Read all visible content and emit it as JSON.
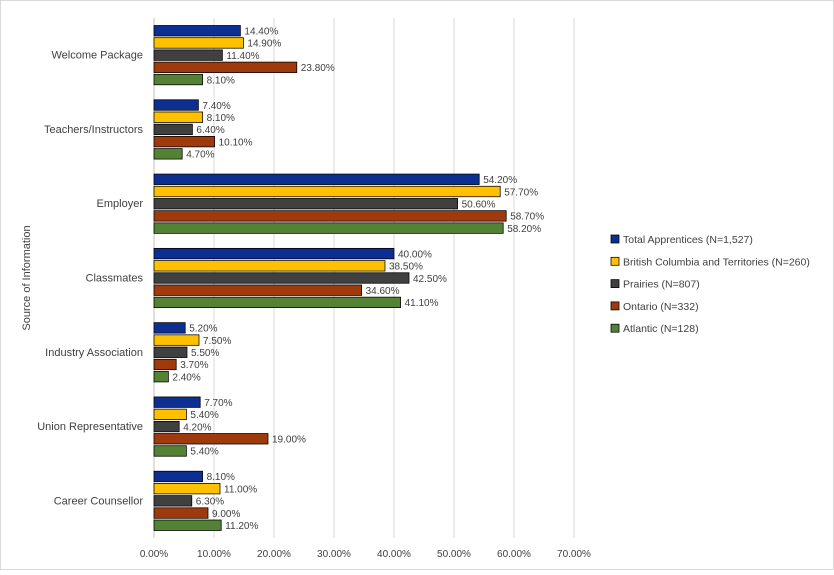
{
  "chart_data": {
    "type": "bar",
    "orientation": "horizontal",
    "title": "",
    "xlabel": "",
    "ylabel": "Source of Information",
    "xlim": [
      0,
      70
    ],
    "xticks": [
      0,
      10,
      20,
      30,
      40,
      50,
      60,
      70
    ],
    "tick_labels": [
      "0.00%",
      "10.00%",
      "20.00%",
      "30.00%",
      "40.00%",
      "50.00%",
      "60.00%",
      "70.00%"
    ],
    "grid": true,
    "legend_position": "right",
    "categories": [
      "Welcome Package",
      "Teachers/Instructors",
      "Employer",
      "Classmates",
      "Industry Association",
      "Union Representative",
      "Career Counsellor"
    ],
    "series": [
      {
        "name": "Total Apprentices (N=1,527)",
        "color": "#0d2f91",
        "values": [
          14.4,
          7.4,
          54.2,
          40.0,
          5.2,
          7.7,
          8.1
        ],
        "labels": [
          "14.40%",
          "7.40%",
          "54.20%",
          "40.00%",
          "5.20%",
          "7.70%",
          "8.10%"
        ]
      },
      {
        "name": "British Columbia and Territories (N=260)",
        "color": "#ffc000",
        "values": [
          14.9,
          8.1,
          57.7,
          38.5,
          7.5,
          5.4,
          11.0
        ],
        "labels": [
          "14.90%",
          "8.10%",
          "57.70%",
          "38.50%",
          "7.50%",
          "5.40%",
          "11.00%"
        ]
      },
      {
        "name": "Prairies (N=807)",
        "color": "#404040",
        "values": [
          11.4,
          6.4,
          50.6,
          42.5,
          5.5,
          4.2,
          6.3
        ],
        "labels": [
          "11.40%",
          "6.40%",
          "50.60%",
          "42.50%",
          "5.50%",
          "4.20%",
          "6.30%"
        ]
      },
      {
        "name": "Ontario (N=332)",
        "color": "#9e3a0b",
        "values": [
          23.8,
          10.1,
          58.7,
          34.6,
          3.7,
          19.0,
          9.0
        ],
        "labels": [
          "23.80%",
          "10.10%",
          "58.70%",
          "34.60%",
          "3.70%",
          "19.00%",
          "9.00%"
        ]
      },
      {
        "name": "Atlantic (N=128)",
        "color": "#548235",
        "values": [
          8.1,
          4.7,
          58.2,
          41.1,
          2.4,
          5.4,
          11.2
        ],
        "labels": [
          "8.10%",
          "4.70%",
          "58.20%",
          "41.10%",
          "2.40%",
          "5.40%",
          "11.20%"
        ]
      }
    ]
  }
}
